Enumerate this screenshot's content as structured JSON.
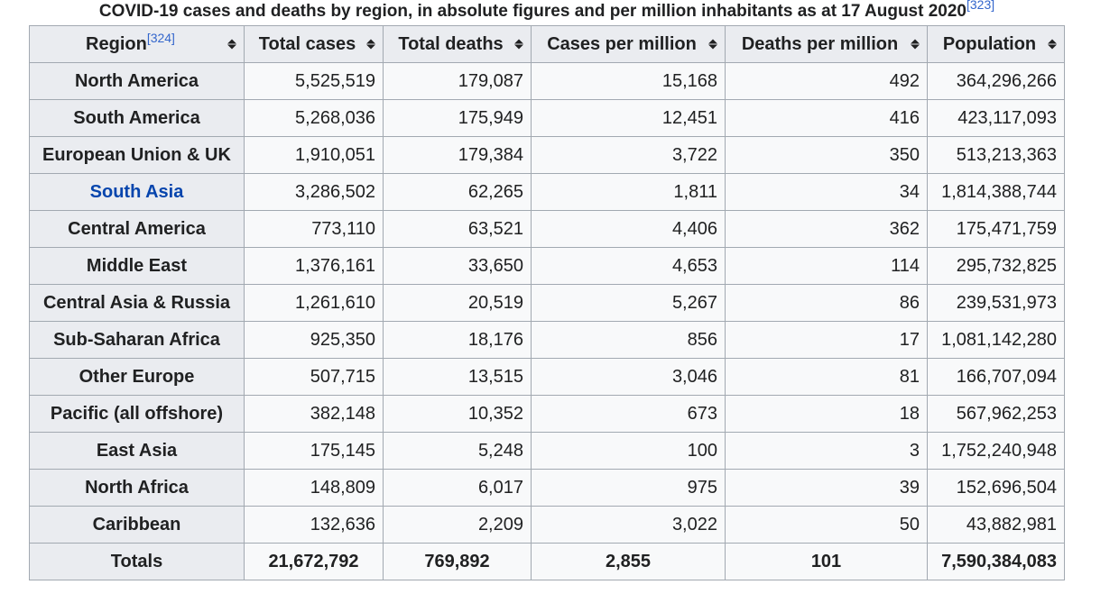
{
  "caption": {
    "text": "COVID-19 cases and deaths by region, in absolute figures and per million inhabitants as at 17 August 2020",
    "ref": "[323]"
  },
  "headers": {
    "region": "Region",
    "region_ref": "[324]",
    "total_cases": "Total cases",
    "total_deaths": "Total deaths",
    "cases_per_million": "Cases per million",
    "deaths_per_million": "Deaths per million",
    "population": "Population"
  },
  "rows": [
    {
      "region": "North America",
      "total_cases": "5,525,519",
      "total_deaths": "179,087",
      "cases_per_million": "15,168",
      "deaths_per_million": "492",
      "population": "364,296,266"
    },
    {
      "region": "South America",
      "total_cases": "5,268,036",
      "total_deaths": "175,949",
      "cases_per_million": "12,451",
      "deaths_per_million": "416",
      "population": "423,117,093"
    },
    {
      "region": "European Union & UK",
      "total_cases": "1,910,051",
      "total_deaths": "179,384",
      "cases_per_million": "3,722",
      "deaths_per_million": "350",
      "population": "513,213,363"
    },
    {
      "region": "South Asia",
      "total_cases": "3,286,502",
      "total_deaths": "62,265",
      "cases_per_million": "1,811",
      "deaths_per_million": "34",
      "population": "1,814,388,744"
    },
    {
      "region": "Central America",
      "total_cases": "773,110",
      "total_deaths": "63,521",
      "cases_per_million": "4,406",
      "deaths_per_million": "362",
      "population": "175,471,759"
    },
    {
      "region": "Middle East",
      "total_cases": "1,376,161",
      "total_deaths": "33,650",
      "cases_per_million": "4,653",
      "deaths_per_million": "114",
      "population": "295,732,825"
    },
    {
      "region": "Central Asia & Russia",
      "total_cases": "1,261,610",
      "total_deaths": "20,519",
      "cases_per_million": "5,267",
      "deaths_per_million": "86",
      "population": "239,531,973"
    },
    {
      "region": "Sub-Saharan Africa",
      "total_cases": "925,350",
      "total_deaths": "18,176",
      "cases_per_million": "856",
      "deaths_per_million": "17",
      "population": "1,081,142,280"
    },
    {
      "region": "Other Europe",
      "total_cases": "507,715",
      "total_deaths": "13,515",
      "cases_per_million": "3,046",
      "deaths_per_million": "81",
      "population": "166,707,094"
    },
    {
      "region": "Pacific (all offshore)",
      "total_cases": "382,148",
      "total_deaths": "10,352",
      "cases_per_million": "673",
      "deaths_per_million": "18",
      "population": "567,962,253"
    },
    {
      "region": "East Asia",
      "total_cases": "175,145",
      "total_deaths": "5,248",
      "cases_per_million": "100",
      "deaths_per_million": "3",
      "population": "1,752,240,948"
    },
    {
      "region": "North Africa",
      "total_cases": "148,809",
      "total_deaths": "6,017",
      "cases_per_million": "975",
      "deaths_per_million": "39",
      "population": "152,696,504"
    },
    {
      "region": "Caribbean",
      "total_cases": "132,636",
      "total_deaths": "2,209",
      "cases_per_million": "3,022",
      "deaths_per_million": "50",
      "population": "43,882,981"
    }
  ],
  "totals": {
    "label": "Totals",
    "total_cases": "21,672,792",
    "total_deaths": "769,892",
    "cases_per_million": "2,855",
    "deaths_per_million": "101",
    "population": "7,590,384,083"
  },
  "colors": {
    "link": "#0645ad",
    "header_bg": "#eaecf0",
    "cell_bg": "#f8f9fa",
    "border": "#a2a9b1"
  }
}
